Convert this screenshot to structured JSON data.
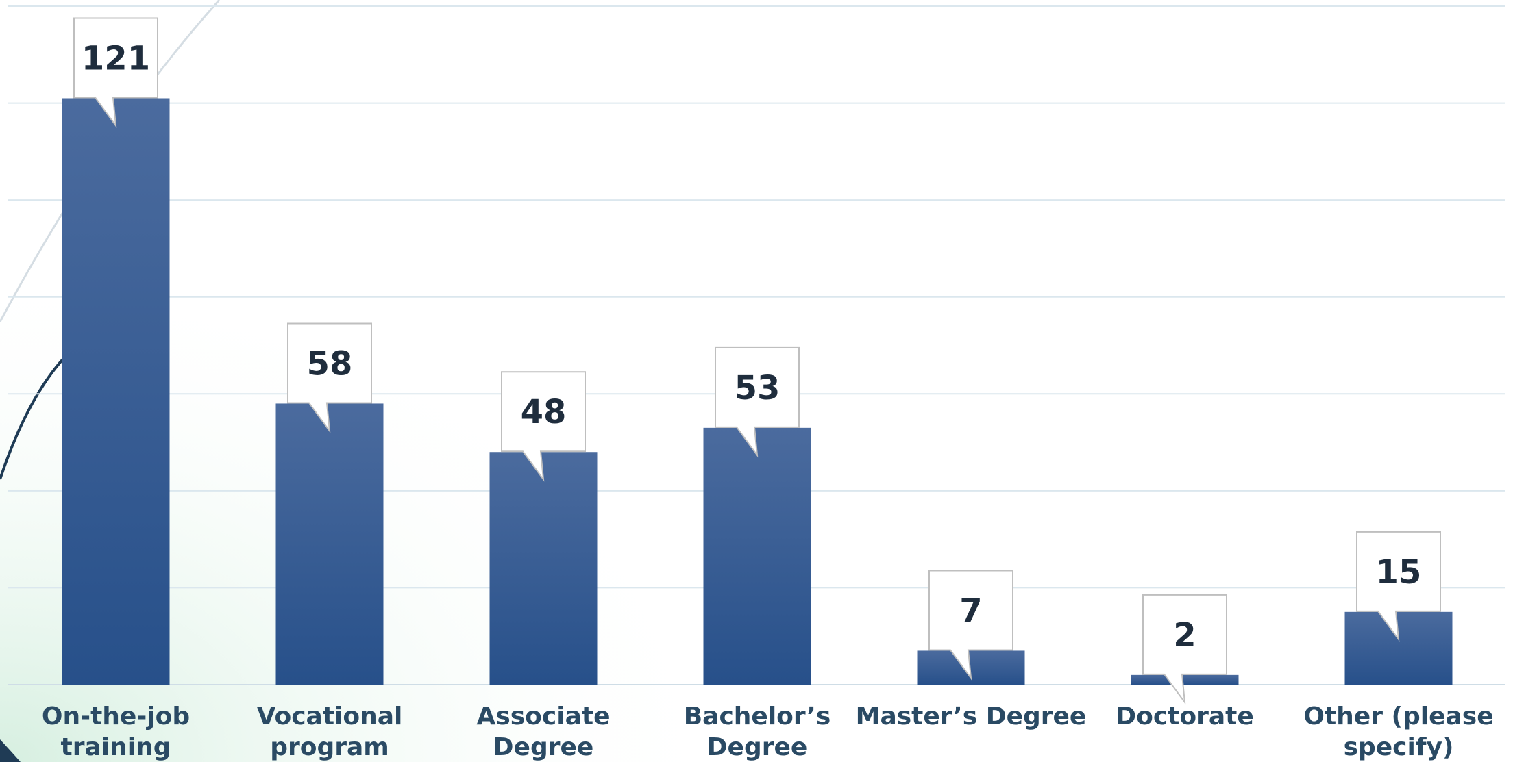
{
  "chart_data": {
    "type": "bar",
    "categories": [
      [
        "On-the-job",
        "training"
      ],
      [
        "Vocational",
        "program"
      ],
      [
        "Associate",
        "Degree"
      ],
      [
        "Bachelor’s",
        "Degree"
      ],
      [
        "Master’s Degree"
      ],
      [
        "Doctorate"
      ],
      [
        "Other (please",
        "specify)"
      ]
    ],
    "values": [
      121,
      58,
      48,
      53,
      7,
      2,
      15
    ],
    "title": "",
    "xlabel": "",
    "ylabel": "",
    "ylim": [
      0,
      140
    ],
    "grid": true,
    "gridlines": [
      0,
      20,
      40,
      60,
      80,
      100,
      120,
      140
    ],
    "legend": "none",
    "colors": {
      "bar_top": "#4b6b9e",
      "bar_bottom": "#27508a",
      "background_accent": "#d6efe0",
      "decor_line": "#1f3b55"
    }
  }
}
